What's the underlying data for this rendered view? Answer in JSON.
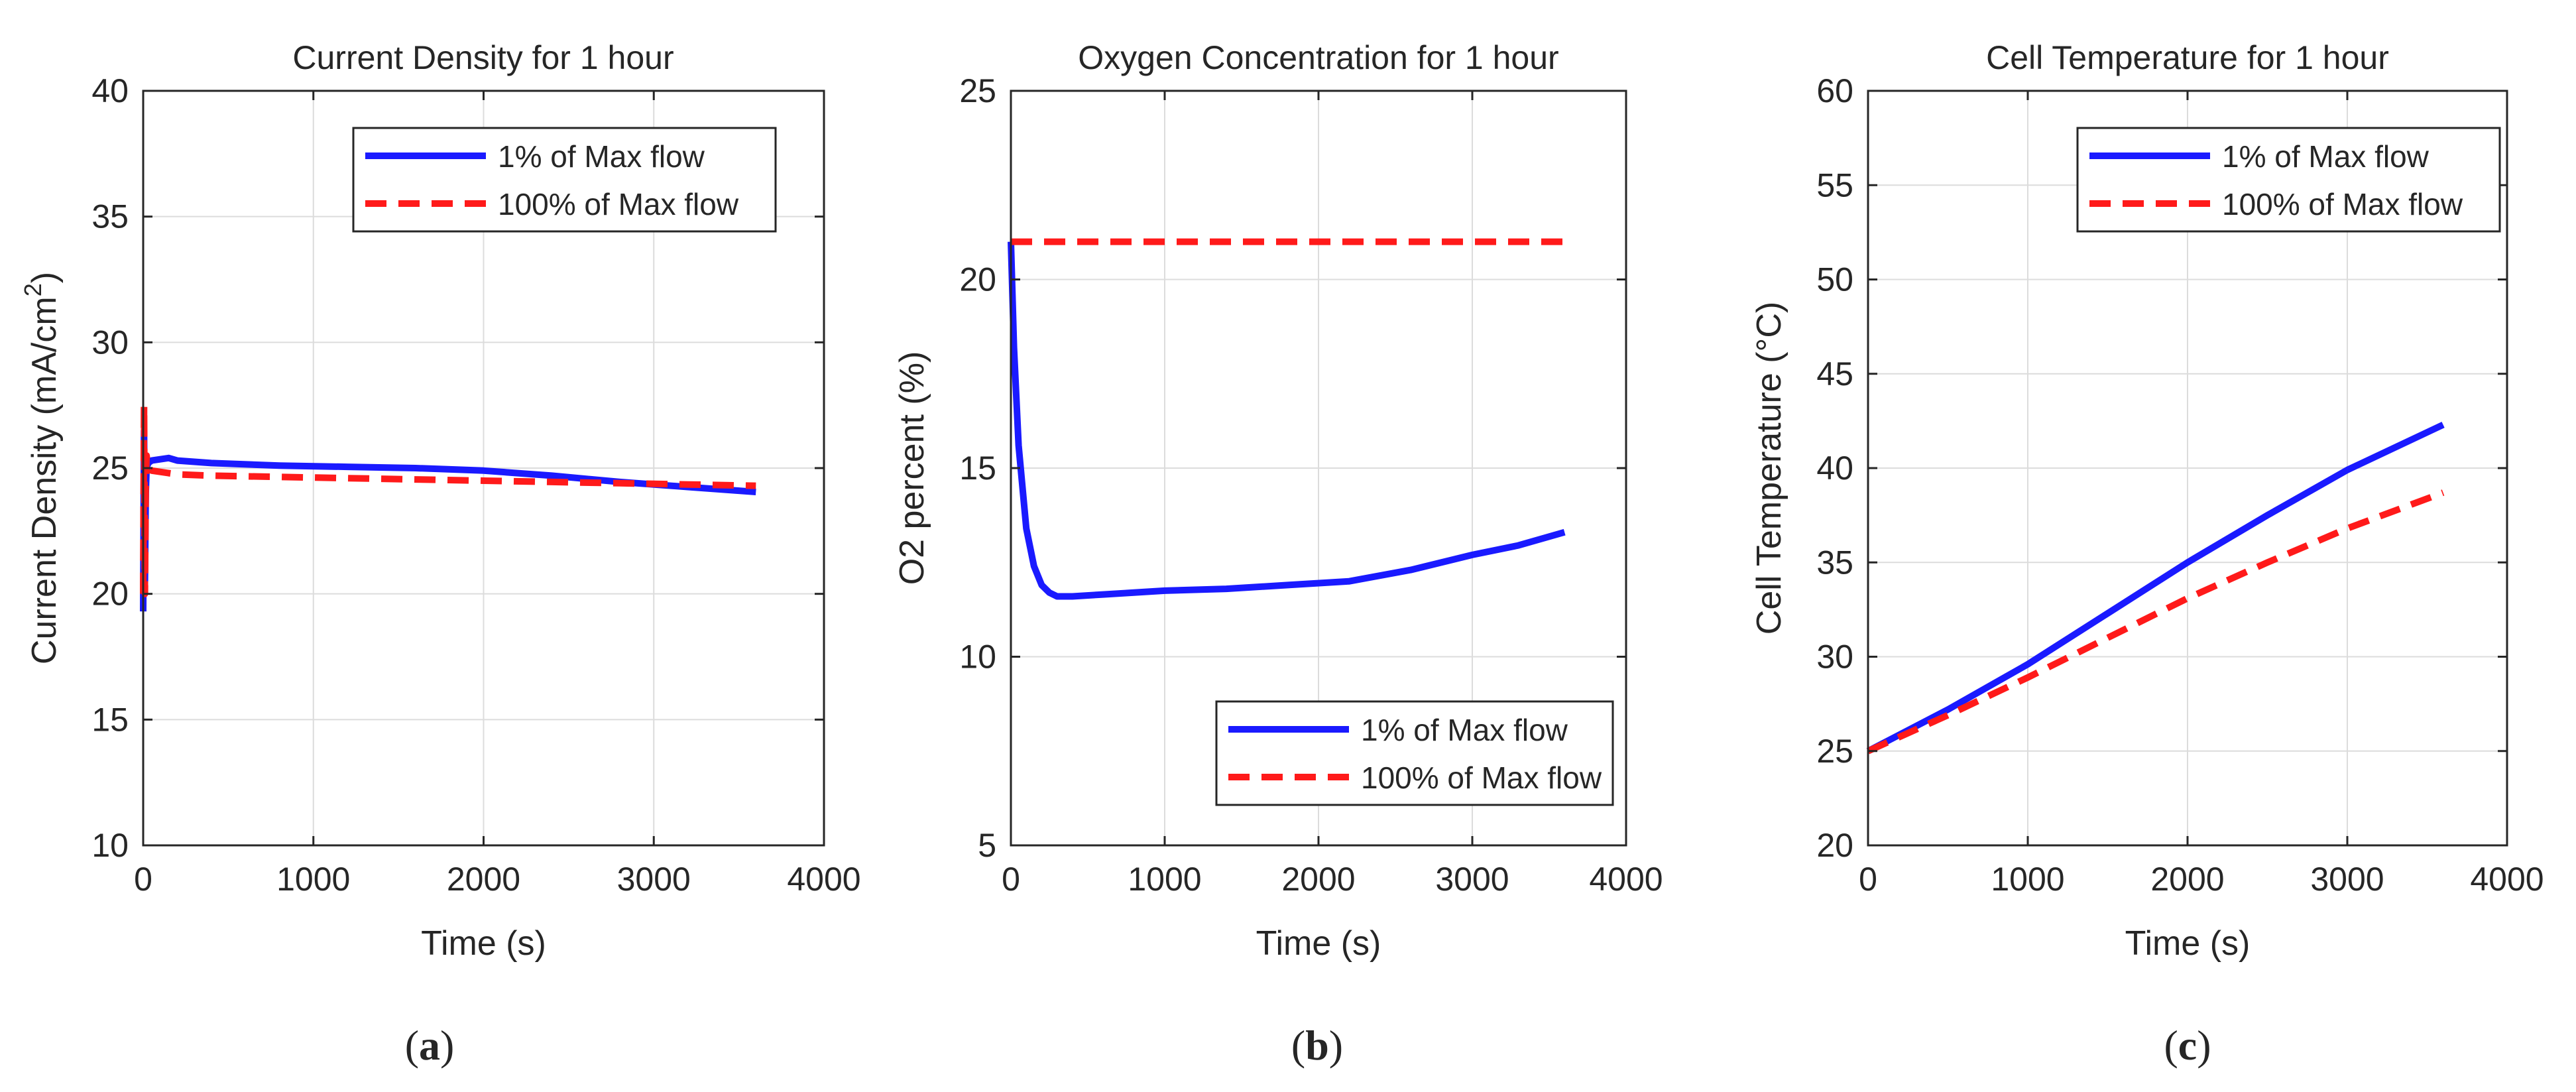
{
  "figure": {
    "colors": {
      "background": "#ffffff",
      "axis": "#262626",
      "grid": "#dcdcdc",
      "series_solid": "#1a1aff",
      "series_dashed": "#ff1a1a"
    }
  },
  "chart_data": [
    {
      "panel": "(a)",
      "panel_letter": "a",
      "type": "line",
      "title": "Current Density for 1 hour",
      "xlabel": "Time (s)",
      "ylabel": "Current Density (mA/cm",
      "ylabel_superscript": "2",
      "ylabel_suffix": ")",
      "xlim": [
        0,
        4000
      ],
      "ylim": [
        10,
        40
      ],
      "xticks": [
        0,
        1000,
        2000,
        3000,
        4000
      ],
      "yticks": [
        10,
        15,
        20,
        25,
        30,
        35,
        40
      ],
      "grid": true,
      "legend_position": "top-right",
      "series": [
        {
          "name": "1% of Max flow",
          "style": "solid",
          "color": "#1a1aff",
          "x": [
            0,
            5,
            10,
            15,
            20,
            30,
            50,
            100,
            150,
            200,
            400,
            800,
            1200,
            1600,
            2000,
            2400,
            2800,
            3200,
            3600
          ],
          "y": [
            19.3,
            26.5,
            20.5,
            24.0,
            25.0,
            25.2,
            25.3,
            25.35,
            25.4,
            25.3,
            25.2,
            25.1,
            25.05,
            25.0,
            24.9,
            24.7,
            24.45,
            24.25,
            24.05
          ]
        },
        {
          "name": "100% of Max flow",
          "style": "dashed",
          "color": "#ff1a1a",
          "x": [
            0,
            5,
            10,
            15,
            20,
            30,
            50,
            100,
            150,
            200,
            400,
            800,
            1200,
            1600,
            2000,
            2400,
            2800,
            3200,
            3600
          ],
          "y": [
            20.0,
            27.5,
            20.0,
            24.5,
            25.5,
            25.0,
            24.9,
            24.85,
            24.8,
            24.75,
            24.7,
            24.65,
            24.6,
            24.55,
            24.5,
            24.45,
            24.4,
            24.35,
            24.3
          ]
        }
      ]
    },
    {
      "panel": "(b)",
      "panel_letter": "b",
      "type": "line",
      "title": "Oxygen Concentration for 1 hour",
      "xlabel": "Time (s)",
      "ylabel": "O2 percent (%)",
      "xlim": [
        0,
        4000
      ],
      "ylim": [
        5,
        25
      ],
      "xticks": [
        0,
        1000,
        2000,
        3000,
        4000
      ],
      "yticks": [
        5,
        10,
        15,
        20,
        25
      ],
      "grid": true,
      "legend_position": "bottom-right",
      "series": [
        {
          "name": "1% of Max flow",
          "style": "solid",
          "color": "#1a1aff",
          "x": [
            0,
            20,
            50,
            100,
            150,
            200,
            250,
            300,
            400,
            600,
            800,
            1000,
            1400,
            1800,
            2200,
            2600,
            3000,
            3300,
            3600
          ],
          "y": [
            21.0,
            18.2,
            15.6,
            13.4,
            12.4,
            11.9,
            11.7,
            11.6,
            11.6,
            11.65,
            11.7,
            11.75,
            11.8,
            11.9,
            12.0,
            12.3,
            12.7,
            12.95,
            13.3
          ]
        },
        {
          "name": "100% of Max flow",
          "style": "dashed",
          "color": "#ff1a1a",
          "x": [
            0,
            600,
            1200,
            1800,
            2400,
            3000,
            3600
          ],
          "y": [
            21.0,
            21.0,
            21.0,
            21.0,
            21.0,
            21.0,
            21.0
          ]
        }
      ]
    },
    {
      "panel": "(c)",
      "panel_letter": "c",
      "type": "line",
      "title": "Cell Temperature for 1 hour",
      "xlabel": "Time (s)",
      "ylabel": "Cell Temperature (°C)",
      "xlim": [
        0,
        4000
      ],
      "ylim": [
        20,
        60
      ],
      "xticks": [
        0,
        1000,
        2000,
        3000,
        4000
      ],
      "yticks": [
        20,
        25,
        30,
        35,
        40,
        45,
        50,
        55,
        60
      ],
      "grid": true,
      "legend_position": "top-right",
      "series": [
        {
          "name": "1% of Max flow",
          "style": "solid",
          "color": "#1a1aff",
          "x": [
            0,
            500,
            1000,
            1500,
            2000,
            2500,
            3000,
            3600
          ],
          "y": [
            25.0,
            27.2,
            29.6,
            32.3,
            35.0,
            37.5,
            39.9,
            42.3
          ]
        },
        {
          "name": "100% of Max flow",
          "style": "dashed",
          "color": "#ff1a1a",
          "x": [
            0,
            500,
            1000,
            1500,
            2000,
            2500,
            3000,
            3600
          ],
          "y": [
            25.0,
            26.9,
            28.9,
            31.0,
            33.1,
            35.0,
            36.8,
            38.7
          ]
        }
      ]
    }
  ]
}
